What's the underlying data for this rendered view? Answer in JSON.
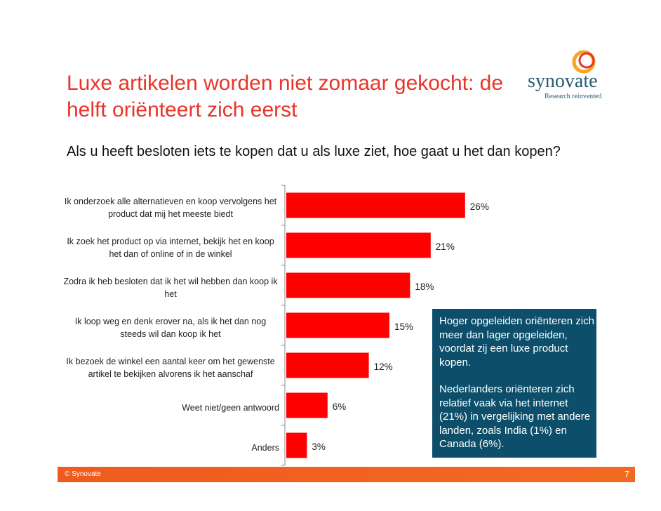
{
  "chart_data": {
    "type": "hbar",
    "title": "Luxe artikelen worden niet zomaar gekocht: de helft oriënteert zich eerst",
    "subtitle": "Als u heeft besloten iets te kopen dat u als luxe ziet, hoe gaat u het dan kopen?",
    "categories": [
      "Ik onderzoek alle alternatieven en koop vervolgens het product dat mij het meeste biedt",
      "Ik zoek het product op via internet, bekijk het en koop het dan of online of in de winkel",
      "Zodra ik heb besloten dat ik het wil hebben dan koop ik het",
      "Ik loop weg en denk erover na, als ik het dan nog steeds wil dan koop ik het",
      "Ik bezoek de winkel een aantal keer om het gewenste artikel te bekijken alvorens ik het aanschaf",
      "Weet niet/geen antwoord",
      "Anders"
    ],
    "values": [
      26,
      21,
      18,
      15,
      12,
      6,
      3
    ],
    "value_labels": [
      "26%",
      "21%",
      "18%",
      "15%",
      "12%",
      "6%",
      "3%"
    ],
    "color": "#ff0000"
  },
  "callout": [
    "Hoger opgeleiden oriënteren zich meer dan lager opgeleiden, voordat zij een luxe product kopen.",
    "Nederlanders oriënteren zich relatief vaak via het internet (21%) in vergelijking met andere landen, zoals India (1%) en Canada (6%)."
  ],
  "logo": {
    "name": "synovate",
    "tagline": "Research reinvented"
  },
  "footer": {
    "copyright": "© Synovate",
    "page": "7"
  }
}
